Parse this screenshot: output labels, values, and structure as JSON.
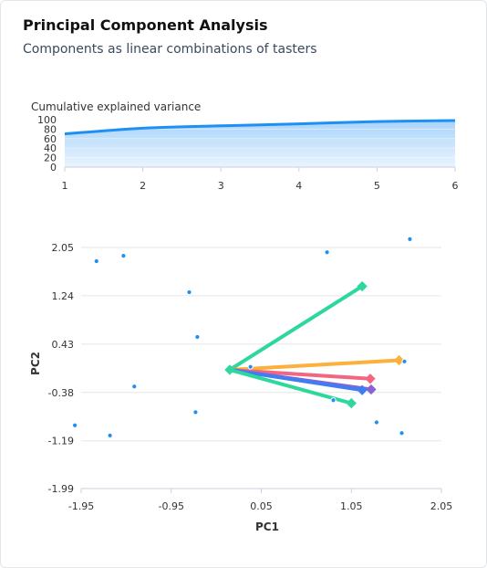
{
  "header": {
    "title": "Principal Component Analysis",
    "subtitle": "Components as linear combinations of tasters"
  },
  "colors": {
    "accent": "#1e90f5",
    "area_top": "#a9d3fb",
    "area_bottom": "#eaf4fe",
    "grid": "#e6e6e6",
    "axis_text": "#333333",
    "point": "#1e90f5"
  },
  "chart_data": [
    {
      "type": "area",
      "title": "Cumulative explained variance",
      "x": [
        1,
        2,
        3,
        4,
        5,
        6
      ],
      "values": [
        70,
        82,
        87,
        91,
        96,
        98
      ],
      "ylim": [
        0,
        100
      ],
      "yticks": [
        "0",
        "20",
        "40",
        "60",
        "80",
        "100"
      ],
      "xticks": [
        "1",
        "2",
        "3",
        "4",
        "5",
        "6"
      ],
      "xlim": [
        1,
        6
      ]
    },
    {
      "type": "scatter",
      "xlabel": "PC1",
      "ylabel": "PC2",
      "xlim": [
        -1.95,
        2.05
      ],
      "ylim": [
        -1.99,
        2.05
      ],
      "xticks": [
        "-1.95",
        "-0.95",
        "0.05",
        "1.05",
        "2.05"
      ],
      "yticks": [
        "-1.99",
        "-1.19",
        "-0.38",
        "0.43",
        "1.24",
        "2.05"
      ],
      "grid": true,
      "points": [
        {
          "x": -1.78,
          "y": 1.82
        },
        {
          "x": -1.48,
          "y": 1.91
        },
        {
          "x": -0.75,
          "y": 1.3
        },
        {
          "x": -0.66,
          "y": 0.55
        },
        {
          "x": -1.36,
          "y": -0.28
        },
        {
          "x": -0.68,
          "y": -0.71
        },
        {
          "x": -1.63,
          "y": -1.1
        },
        {
          "x": -2.02,
          "y": -0.93
        },
        {
          "x": 0.78,
          "y": 1.97
        },
        {
          "x": 1.7,
          "y": 2.19
        },
        {
          "x": 1.64,
          "y": 0.14
        },
        {
          "x": 1.33,
          "y": -0.88
        },
        {
          "x": 1.61,
          "y": -1.06
        },
        {
          "x": 0.85,
          "y": -0.51
        },
        {
          "x": -0.07,
          "y": 0.05
        }
      ],
      "loadings": [
        {
          "x": 1.17,
          "y": 1.4,
          "color": "#2ed89c"
        },
        {
          "x": 1.58,
          "y": 0.16,
          "color": "#fbb13b"
        },
        {
          "x": 1.26,
          "y": -0.15,
          "color": "#f2667f"
        },
        {
          "x": 1.27,
          "y": -0.33,
          "color": "#8a63d2"
        },
        {
          "x": 1.17,
          "y": -0.34,
          "color": "#3f7ef2"
        },
        {
          "x": 1.05,
          "y": -0.56,
          "color": "#2ed89c"
        }
      ],
      "loading_origin": {
        "x": -0.3,
        "y": 0.0
      }
    }
  ]
}
